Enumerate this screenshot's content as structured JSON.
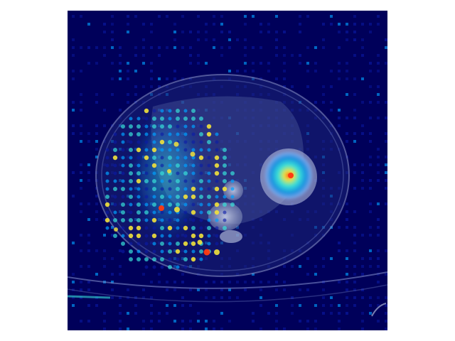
{
  "image": {
    "description_name": "ct-axial-slice-with-attention-heatmap",
    "colors": {
      "panel_background": "#00005a",
      "low": "#0a1aa8",
      "mid": "#00a0ff",
      "cyan": "#37e0d8",
      "yellow": "#f2e23c",
      "high": "#ff3a10",
      "anatomy": "#9aa6c8"
    },
    "colormap": "jet"
  }
}
